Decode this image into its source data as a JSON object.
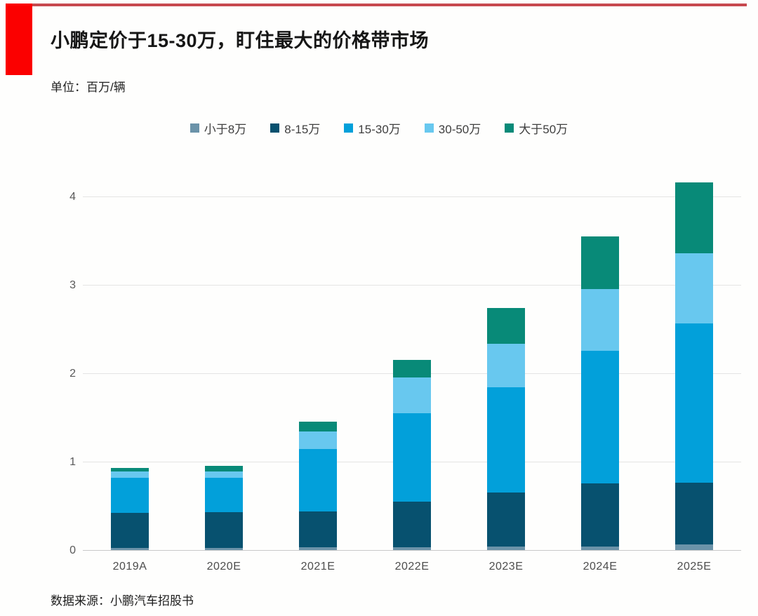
{
  "page": {
    "title": "小鹏定价于15-30万，盯住最大的价格带市场",
    "unit_label": "单位：百万/辆",
    "source": "数据来源：小鹏汽车招股书",
    "accent_block_color": "#fb0000",
    "accent_line_color": "#c7494f"
  },
  "chart_data": {
    "type": "bar",
    "stacked": true,
    "title": "小鹏定价于15-30万，盯住最大的价格带市场",
    "ylabel": "百万/辆",
    "categories": [
      "2019A",
      "2020E",
      "2021E",
      "2022E",
      "2023E",
      "2024E",
      "2025E"
    ],
    "series": [
      {
        "name": "小于8万",
        "color": "#6b93a9",
        "values": [
          0.02,
          0.02,
          0.03,
          0.03,
          0.04,
          0.04,
          0.06
        ]
      },
      {
        "name": "8-15万",
        "color": "#07516f",
        "values": [
          0.4,
          0.41,
          0.41,
          0.52,
          0.61,
          0.71,
          0.7
        ]
      },
      {
        "name": "15-30万",
        "color": "#02a0da",
        "values": [
          0.4,
          0.39,
          0.7,
          1.0,
          1.19,
          1.5,
          1.8
        ]
      },
      {
        "name": "30-50万",
        "color": "#68c8ef",
        "values": [
          0.07,
          0.07,
          0.2,
          0.4,
          0.49,
          0.7,
          0.8
        ]
      },
      {
        "name": "大于50万",
        "color": "#088a78",
        "values": [
          0.04,
          0.06,
          0.11,
          0.2,
          0.41,
          0.6,
          0.8
        ]
      }
    ],
    "totals": [
      0.93,
      0.95,
      1.45,
      2.15,
      2.74,
      3.55,
      4.16
    ],
    "yticks": [
      0,
      1,
      2,
      3,
      4
    ],
    "ylim": [
      0,
      4.3
    ],
    "grid": true,
    "legend_position": "top"
  }
}
